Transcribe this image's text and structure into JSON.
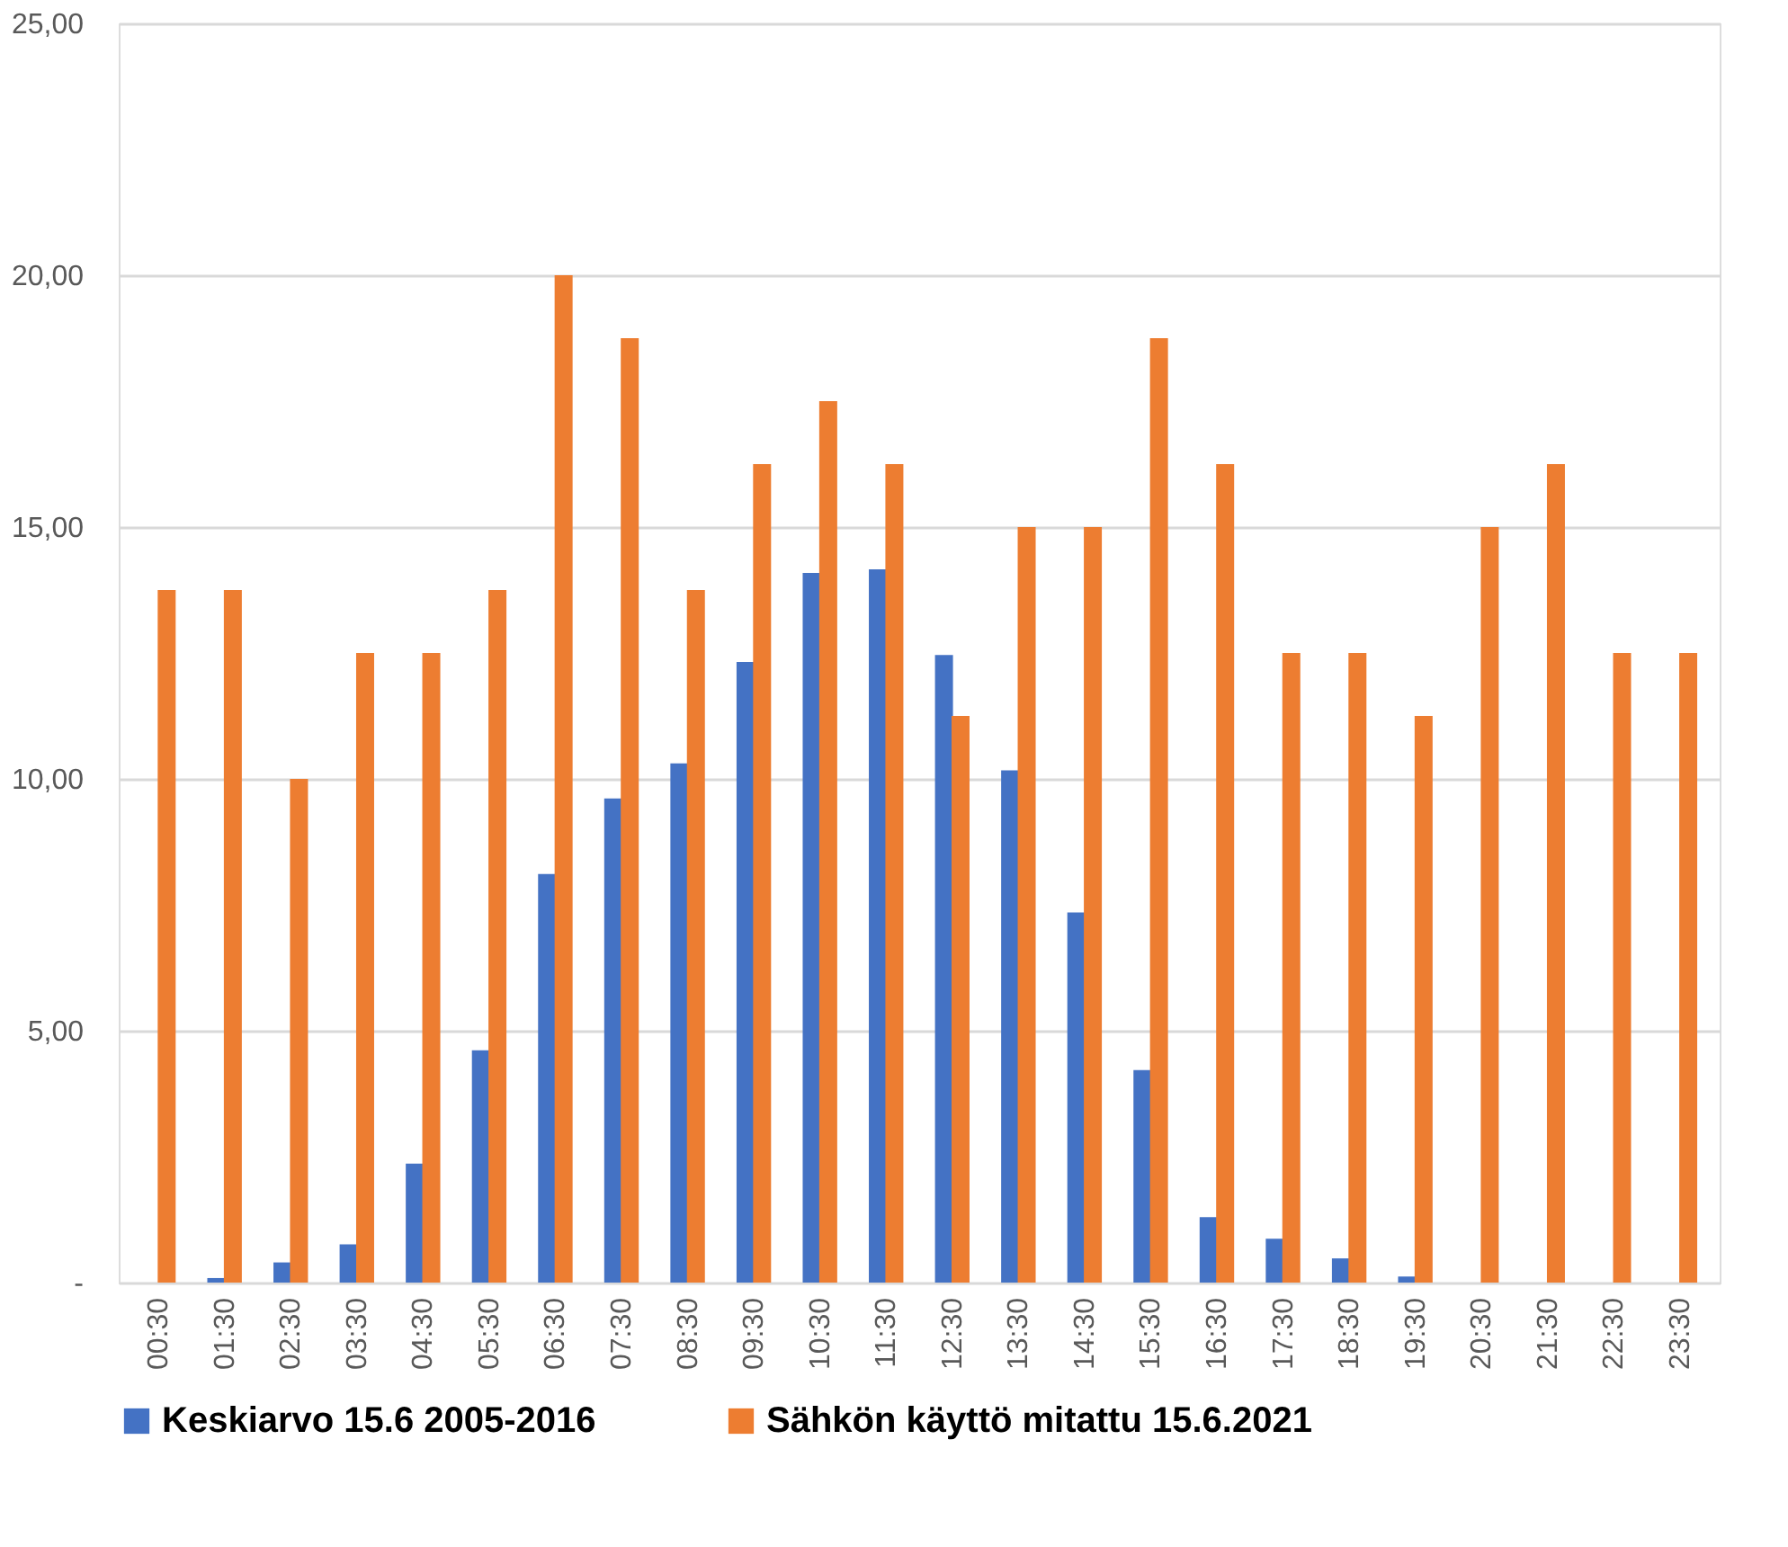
{
  "chart_data": {
    "type": "bar",
    "categories": [
      "00:30",
      "01:30",
      "02:30",
      "03:30",
      "04:30",
      "05:30",
      "06:30",
      "07:30",
      "08:30",
      "09:30",
      "10:30",
      "11:30",
      "12:30",
      "13:30",
      "14:30",
      "15:30",
      "16:30",
      "17:30",
      "18:30",
      "19:30",
      "20:30",
      "21:30",
      "22:30",
      "23:30"
    ],
    "series": [
      {
        "name": "Keskiarvo 15.6 2005-2016",
        "color": "#4472c4",
        "values": [
          0,
          0.09,
          0.4,
          0.76,
          2.36,
          4.61,
          8.11,
          9.61,
          10.31,
          12.32,
          14.09,
          14.16,
          12.46,
          10.17,
          7.35,
          4.22,
          1.3,
          0.87,
          0.48,
          0.12,
          0,
          0,
          0,
          0
        ]
      },
      {
        "name": "Sähkön käyttö mitattu 15.6.2021",
        "color": "#ed7d31",
        "values": [
          13.75,
          13.75,
          10,
          12.5,
          12.5,
          13.75,
          20,
          18.75,
          13.75,
          16.25,
          17.5,
          16.25,
          11.25,
          15,
          15,
          18.75,
          16.25,
          12.5,
          12.5,
          11.25,
          15,
          16.25,
          12.5,
          12.5
        ]
      }
    ],
    "ylim": [
      0,
      25
    ],
    "yticks": [
      {
        "value": 0,
        "label": "-"
      },
      {
        "value": 5,
        "label": "5,00"
      },
      {
        "value": 10,
        "label": "10,00"
      },
      {
        "value": 15,
        "label": "15,00"
      },
      {
        "value": 20,
        "label": "20,00"
      },
      {
        "value": 25,
        "label": "25,00"
      }
    ],
    "grid": "y",
    "legend": "bottom"
  }
}
